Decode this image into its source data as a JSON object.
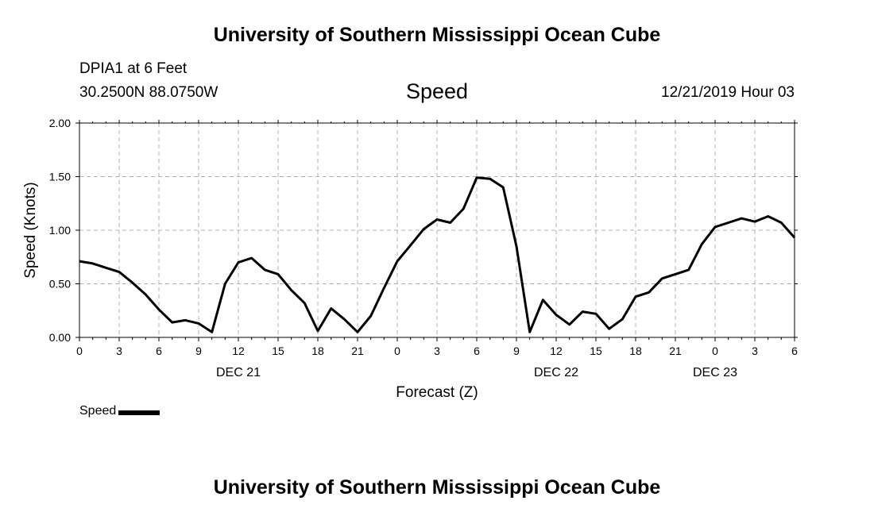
{
  "header": {
    "title": "University of Southern Mississippi Ocean Cube",
    "station": "DPIA1 at 6 Feet",
    "coordinates": "30.2500N 88.0750W",
    "datetime": "12/21/2019 Hour 03"
  },
  "footer": {
    "title": "University of Southern Mississippi Ocean Cube"
  },
  "legend": {
    "label": "Speed",
    "color": "#000000"
  },
  "chart_data": {
    "type": "line",
    "title": "Speed",
    "xlabel": "Forecast (Z)",
    "ylabel": "Speed (Knots)",
    "ylim": [
      0,
      2
    ],
    "xlim": [
      0,
      54
    ],
    "y_ticks": [
      "0.00",
      "0.50",
      "1.00",
      "1.50",
      "2.00"
    ],
    "x_tick_labels": [
      "0",
      "3",
      "6",
      "9",
      "12",
      "15",
      "18",
      "21",
      "0",
      "3",
      "6",
      "9",
      "12",
      "15",
      "18",
      "21",
      "0",
      "3",
      "6"
    ],
    "date_labels": [
      {
        "text": "DEC 21",
        "hour": 12
      },
      {
        "text": "DEC 22",
        "hour": 36
      },
      {
        "text": "DEC 23",
        "hour": 48
      }
    ],
    "grid": true,
    "legend_position": "bottom-left",
    "series": [
      {
        "name": "Speed",
        "color": "#000000",
        "x": [
          0,
          1,
          2,
          3,
          4,
          5,
          6,
          7,
          8,
          9,
          10,
          11,
          12,
          13,
          14,
          15,
          16,
          17,
          18,
          19,
          20,
          21,
          22,
          23,
          24,
          25,
          26,
          27,
          28,
          29,
          30,
          31,
          32,
          33,
          34,
          35,
          36,
          37,
          38,
          39,
          40,
          41,
          42,
          43,
          44,
          45,
          46,
          47,
          48,
          49,
          50,
          51,
          52,
          53,
          54
        ],
        "values": [
          0.71,
          0.69,
          0.65,
          0.61,
          0.51,
          0.4,
          0.26,
          0.14,
          0.16,
          0.13,
          0.05,
          0.5,
          0.7,
          0.74,
          0.63,
          0.59,
          0.44,
          0.32,
          0.06,
          0.27,
          0.17,
          0.05,
          0.2,
          0.46,
          0.71,
          0.86,
          1.01,
          1.1,
          1.07,
          1.2,
          1.49,
          1.48,
          1.4,
          0.85,
          0.05,
          0.35,
          0.21,
          0.12,
          0.24,
          0.22,
          0.08,
          0.17,
          0.38,
          0.42,
          0.55,
          0.59,
          0.63,
          0.87,
          1.03,
          1.07,
          1.11,
          1.08,
          1.13,
          1.07,
          0.93
        ]
      }
    ]
  }
}
